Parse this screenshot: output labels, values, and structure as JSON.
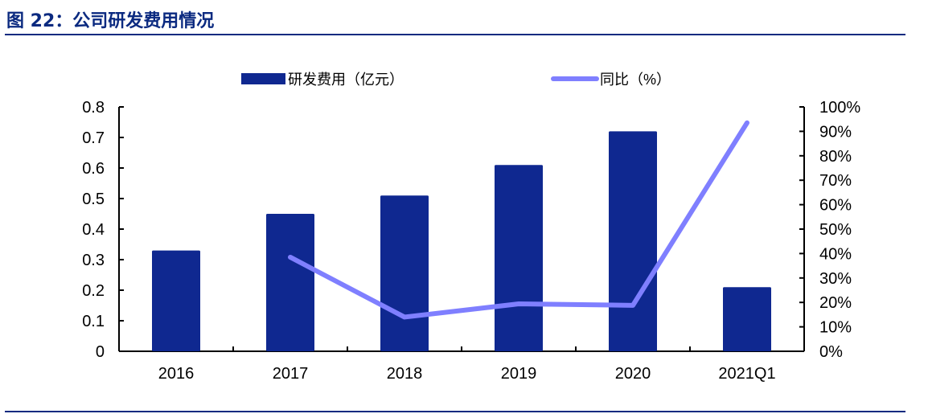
{
  "title": "图 22：公司研发费用情况",
  "chart_data": {
    "type": "bar+line",
    "title": "",
    "categories": [
      "2016",
      "2017",
      "2018",
      "2019",
      "2020",
      "2021Q1"
    ],
    "series": [
      {
        "name": "研发费用（亿元）",
        "type": "bar",
        "axis": "left",
        "color": "#0f2890",
        "values": [
          0.33,
          0.45,
          0.51,
          0.61,
          0.72,
          0.21
        ]
      },
      {
        "name": "同比（%）",
        "type": "line",
        "axis": "right",
        "color": "#7f7fff",
        "values": [
          null,
          38.5,
          14,
          19.4,
          18.8,
          93.5
        ]
      }
    ],
    "y_left": {
      "range": [
        0,
        0.8
      ],
      "ticks": [
        "0",
        "0.1",
        "0.2",
        "0.3",
        "0.4",
        "0.5",
        "0.6",
        "0.7",
        "0.8"
      ]
    },
    "y_right": {
      "range": [
        0,
        100
      ],
      "ticks": [
        "0%",
        "10%",
        "20%",
        "30%",
        "40%",
        "50%",
        "60%",
        "70%",
        "80%",
        "90%",
        "100%"
      ]
    },
    "legend_placement": "top",
    "grid": false
  }
}
